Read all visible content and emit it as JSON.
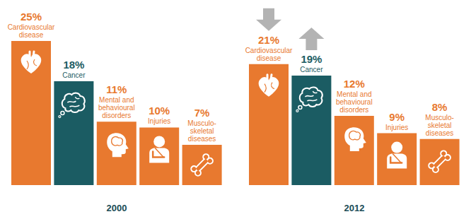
{
  "chart_data": [
    {
      "type": "bar",
      "title": "2000",
      "categories": [
        "Cardiovascular disease",
        "Cancer",
        "Mental and behavioural disorders",
        "Injuries",
        "Musculo-skeletal diseases"
      ],
      "values": [
        25,
        18,
        11,
        10,
        7
      ],
      "value_labels": [
        "25%",
        "18%",
        "11%",
        "10%",
        "7%"
      ],
      "colors": [
        "#e8792f",
        "#1b5c63",
        "#e8792f",
        "#e8792f",
        "#e8792f"
      ],
      "data_labels": true,
      "tick_labels": false
    },
    {
      "type": "bar",
      "title": "2012",
      "categories": [
        "Cardiovascular disease",
        "Cancer",
        "Mental and behavioural disorders",
        "Injuries",
        "Musculo-skeletal diseases"
      ],
      "values": [
        21,
        19,
        12,
        9,
        8
      ],
      "value_labels": [
        "21%",
        "19%",
        "12%",
        "9%",
        "8%"
      ],
      "colors": [
        "#e8792f",
        "#1b5c63",
        "#e8792f",
        "#e8792f",
        "#e8792f"
      ],
      "data_labels": true,
      "tick_labels": false
    }
  ]
}
